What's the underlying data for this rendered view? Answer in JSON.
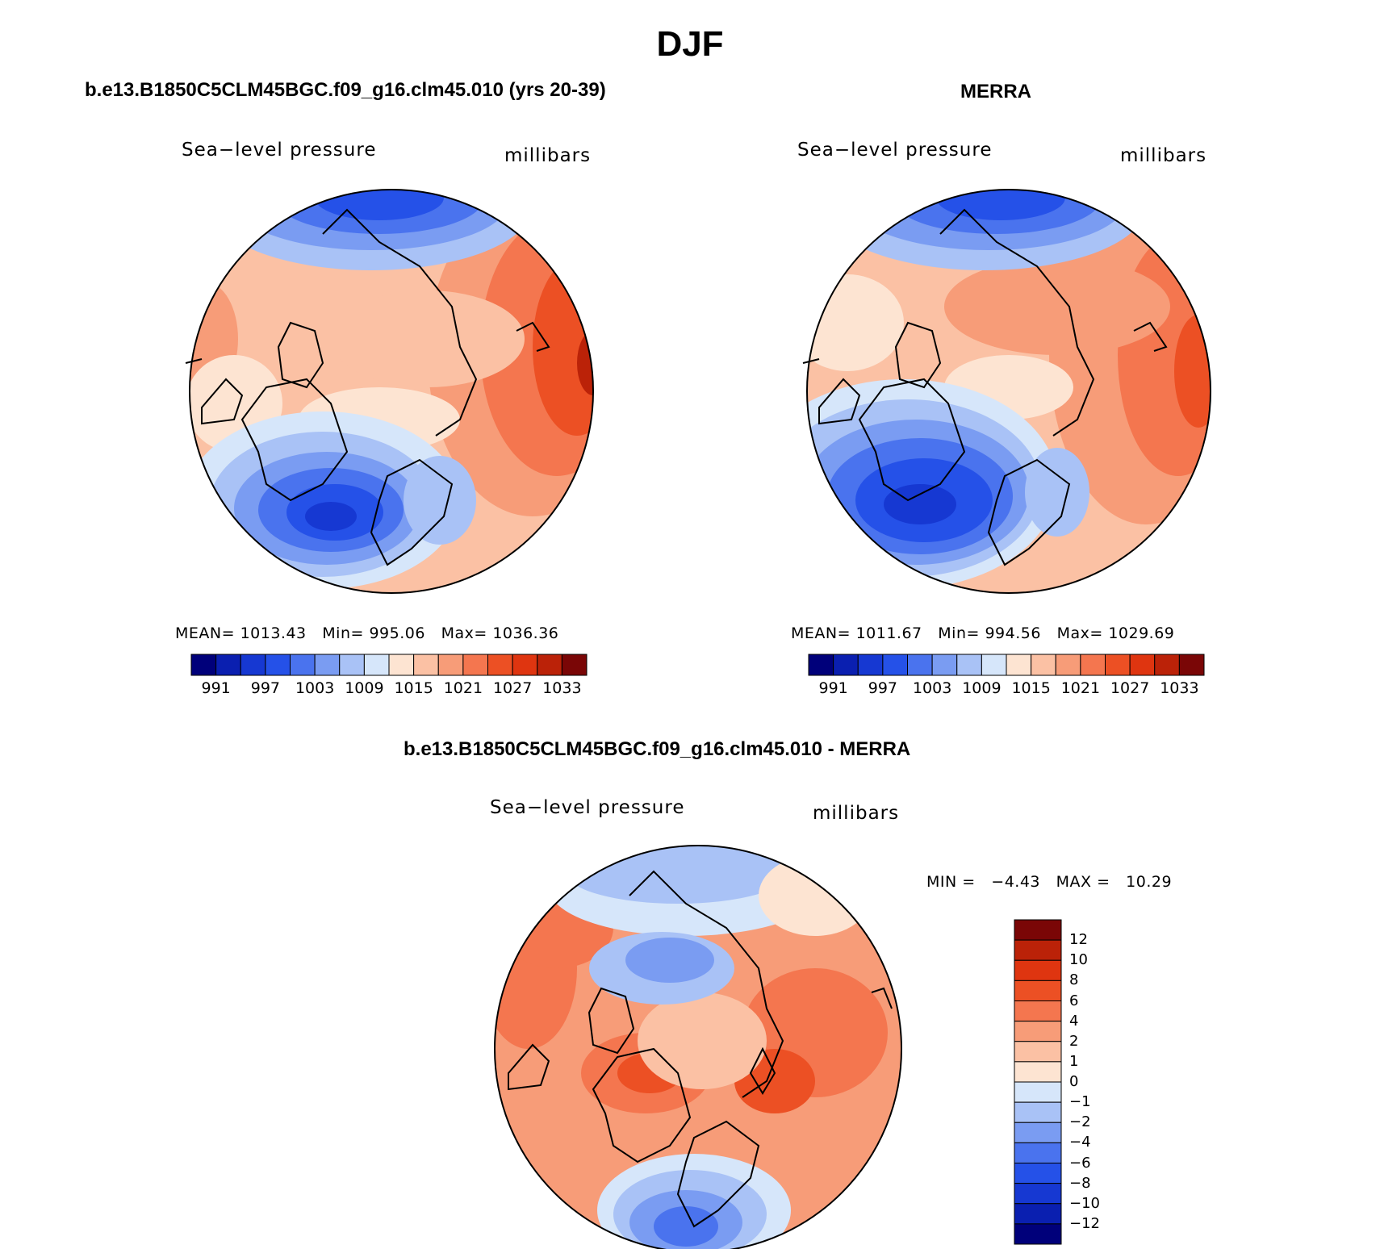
{
  "title": "DJF",
  "panels": [
    {
      "title": "b.e13.B1850C5CLM45BGC.f09_g16.clm45.010 (yrs 20-39)",
      "left_label": "Sea−level pressure",
      "right_label": "millibars",
      "stats": {
        "mean_label": "MEAN=",
        "mean": "1013.43",
        "min_label": "Min=",
        "min": "995.06",
        "max_label": "Max=",
        "max": "1036.36"
      }
    },
    {
      "title": "MERRA",
      "left_label": "Sea−level pressure",
      "right_label": "millibars",
      "stats": {
        "mean_label": "MEAN=",
        "mean": "1011.67",
        "min_label": "Min=",
        "min": "994.56",
        "max_label": "Max=",
        "max": "1029.69"
      }
    },
    {
      "title": "b.e13.B1850C5CLM45BGC.f09_g16.clm45.010 - MERRA",
      "left_label": "Sea−level pressure",
      "right_label": "millibars",
      "stats": {
        "min_label": "MIN =",
        "min": "−4.43",
        "max_label": "MAX =",
        "max": "10.29"
      }
    }
  ],
  "colorbar_abs": {
    "tick_labels": [
      "991",
      "997",
      "1003",
      "1009",
      "1015",
      "1021",
      "1027",
      "1033"
    ],
    "colors": [
      "#00007a",
      "#0a1fb0",
      "#1638d2",
      "#2551e8",
      "#4a73ee",
      "#7a9cf2",
      "#a9c2f6",
      "#d6e6fa",
      "#fde4d2",
      "#fbc1a4",
      "#f79c78",
      "#f4764f",
      "#ec5024",
      "#df3510",
      "#bb2208",
      "#7a0606"
    ]
  },
  "colorbar_diff": {
    "tick_labels": [
      "12",
      "10",
      "8",
      "6",
      "4",
      "2",
      "1",
      "0",
      "−1",
      "−2",
      "−4",
      "−6",
      "−8",
      "−10",
      "−12"
    ],
    "colors": [
      "#7a0606",
      "#bb2208",
      "#df3510",
      "#ec5024",
      "#f4764f",
      "#f79c78",
      "#fbc1a4",
      "#fde4d2",
      "#d6e6fa",
      "#a9c2f6",
      "#7a9cf2",
      "#4a73ee",
      "#2551e8",
      "#1638d2",
      "#0a1fb0",
      "#00007a"
    ]
  }
}
